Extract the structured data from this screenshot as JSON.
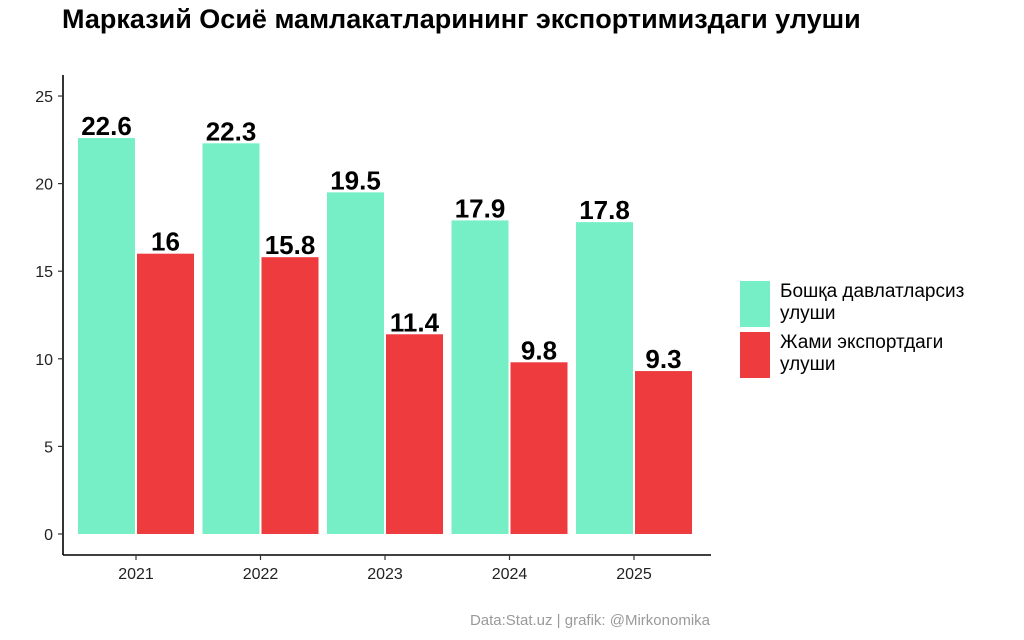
{
  "chart_data": {
    "type": "bar",
    "title": "Марказий Осиё мамлакатларининг экспортимиздаги улуши",
    "categories": [
      "2021",
      "2022",
      "2023",
      "2024",
      "2025"
    ],
    "series": [
      {
        "name": "Бошқа давлатларсиз\n улуши",
        "color": "#76efc6",
        "values": [
          22.6,
          22.3,
          19.5,
          17.9,
          17.8
        ],
        "labels": [
          "22.6",
          "22.3",
          "19.5",
          "17.9",
          "17.8"
        ]
      },
      {
        "name": "Жами экспортдаги\nулуши",
        "color": "#ee3b3e",
        "values": [
          16,
          15.8,
          11.4,
          9.8,
          9.3
        ],
        "labels": [
          "16",
          "15.8",
          "11.4",
          "9.8",
          "9.3"
        ]
      }
    ],
    "yticks": [
      "0",
      "5",
      "10",
      "15",
      "20",
      "25"
    ],
    "ylim": [
      -1.2,
      26.2
    ],
    "xlabel": "",
    "ylabel": "",
    "grid": false,
    "legend_position": "right",
    "caption": "Data:Stat.uz | grafik: @Mirkonomika"
  }
}
